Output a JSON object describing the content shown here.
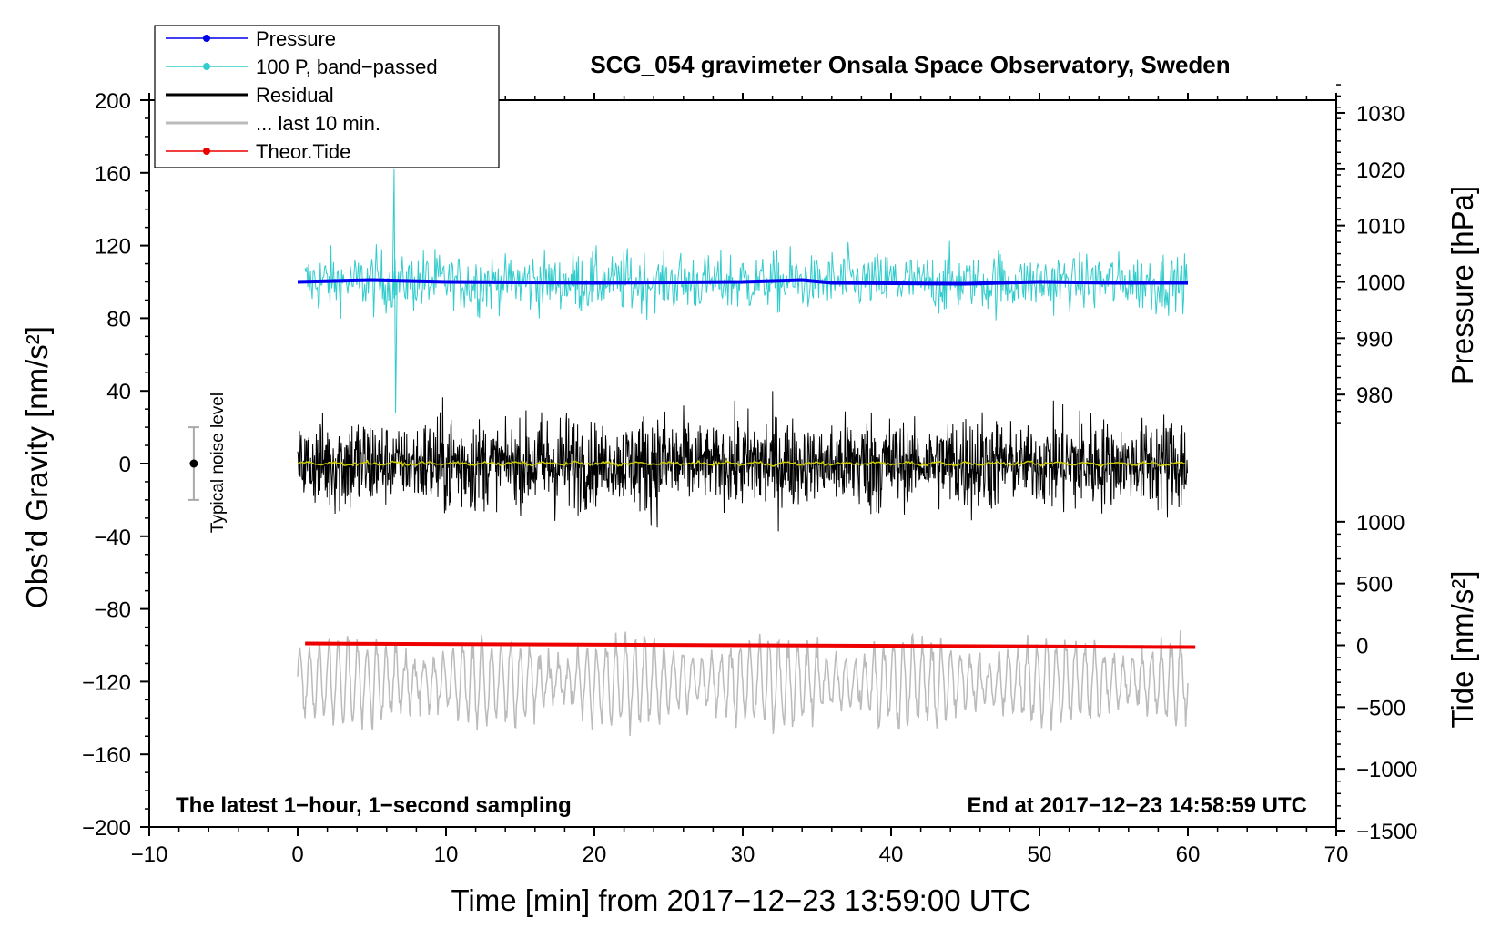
{
  "chart_data": {
    "type": "line",
    "title": "SCG_054 gravimeter Onsala Space Observatory, Sweden",
    "xlabel": "Time [min] from 2017−12−23 13:59:00 UTC",
    "ylabel": "Obs’d Gravity [nm/s²]",
    "ylabel_right_pressure": "Pressure [hPa]",
    "ylabel_right_tide": "Tide [nm/s²]",
    "xlim": [
      -10,
      70
    ],
    "ylim": [
      -200,
      200
    ],
    "x_ticks": [
      "−10",
      "0",
      "10",
      "20",
      "30",
      "40",
      "50",
      "60",
      "70"
    ],
    "y_ticks": [
      "200",
      "160",
      "120",
      "80",
      "40",
      "0",
      "−40",
      "−80",
      "−120",
      "−160",
      "−200"
    ],
    "pressure_ticks": [
      "1030",
      "1020",
      "1010",
      "1000",
      "990",
      "980"
    ],
    "tide_ticks": [
      "1000",
      "500",
      "0",
      "−500",
      "−1000",
      "−1500"
    ],
    "annotation_left": "The latest 1−hour, 1−second sampling",
    "annotation_right": "End at 2017−12−23 14:58:59 UTC",
    "noise_label": "Typical noise level",
    "noise_bar": {
      "x": -7,
      "center": 0,
      "low": -20,
      "high": 20
    },
    "legend": [
      {
        "label": "Pressure",
        "color": "#0000ee",
        "marker": true
      },
      {
        "label": "100 P, band−passed",
        "color": "#33cccc",
        "marker": true
      },
      {
        "label": "Residual",
        "color": "#000000",
        "marker": false
      },
      {
        "label": "... last 10 min.",
        "color": "#bbbbbb",
        "marker": false
      },
      {
        "label": "Theor.Tide",
        "color": "#ee0000",
        "marker": true
      }
    ],
    "series": [
      {
        "name": "Pressure",
        "color": "#0000ee",
        "x": [
          0,
          5,
          10,
          20,
          30,
          34,
          36,
          45,
          50,
          55,
          60
        ],
        "y": [
          100,
          101,
          100,
          99.5,
          100,
          101,
          99.5,
          99,
          100,
          99.5,
          99.5
        ]
      },
      {
        "name": "100 P, band-passed",
        "color": "#33cccc",
        "center": 100,
        "amplitude": 14,
        "x_range": [
          0.5,
          60
        ]
      },
      {
        "name": "Residual",
        "color": "#000000",
        "center": 0,
        "amplitude": 22,
        "x_range": [
          0,
          60
        ]
      },
      {
        "name": "Residual smoothed",
        "color": "#cccc00",
        "center": 0,
        "amplitude": 1,
        "x_range": [
          0,
          60
        ]
      },
      {
        "name": "... last 10 min.",
        "color": "#bbbbbb",
        "center": -120,
        "amplitude": 22,
        "x_range": [
          0,
          60
        ]
      },
      {
        "name": "Theor.Tide",
        "color": "#ee0000",
        "x": [
          0.5,
          60.5
        ],
        "y": [
          -99,
          -101
        ]
      }
    ]
  }
}
